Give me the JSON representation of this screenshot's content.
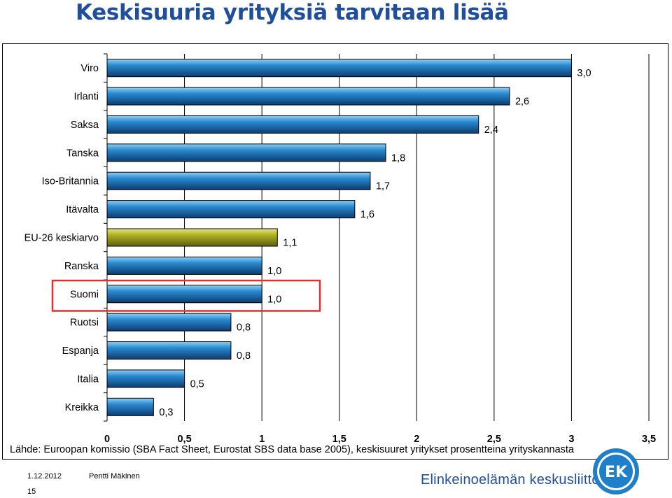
{
  "page": {
    "title": "Keskisuuria yrityksiä tarvitaan lisää",
    "source": "Lähde: Euroopan komissio (SBA Fact Sheet, Eurostat SBS data base 2005), keskisuuret yritykset prosentteina yrityskannasta",
    "footer_date": "1.12.2012",
    "footer_author": "Pentti Mäkinen",
    "footer_page": "15",
    "org_name": "Elinkeinoelämän keskusliitto",
    "logo_text": "EK"
  },
  "chart_data": {
    "type": "bar",
    "orientation": "horizontal",
    "categories": [
      "Viro",
      "Irlanti",
      "Saksa",
      "Tanska",
      "Iso-Britannia",
      "Itävalta",
      "EU-26 keskiarvo",
      "Ranska",
      "Suomi",
      "Ruotsi",
      "Espanja",
      "Italia",
      "Kreikka"
    ],
    "values": [
      3.0,
      2.6,
      2.4,
      1.8,
      1.7,
      1.6,
      1.1,
      1.0,
      1.0,
      0.8,
      0.8,
      0.5,
      0.3
    ],
    "value_labels": [
      "3,0",
      "2,6",
      "2,4",
      "1,8",
      "1,7",
      "1,6",
      "1,1",
      "1,0",
      "1,0",
      "0,8",
      "0,8",
      "0,5",
      "0,3"
    ],
    "highlight_color_category": "EU-26 keskiarvo",
    "highlight_box_category": "Suomi",
    "xlim": [
      0,
      3.5
    ],
    "x_ticks": [
      0,
      0.5,
      1,
      1.5,
      2,
      2.5,
      3,
      3.5
    ],
    "x_tick_labels": [
      "0",
      "0,5",
      "1",
      "1,5",
      "2",
      "2,5",
      "3",
      "3,5"
    ],
    "gridlines": "vertical",
    "legend": "none",
    "colors": {
      "bar": "#1a6fb5",
      "bar_highlight": "#a9ab1e",
      "highlight_box": "#e03131",
      "title": "#1f4e9c"
    }
  }
}
